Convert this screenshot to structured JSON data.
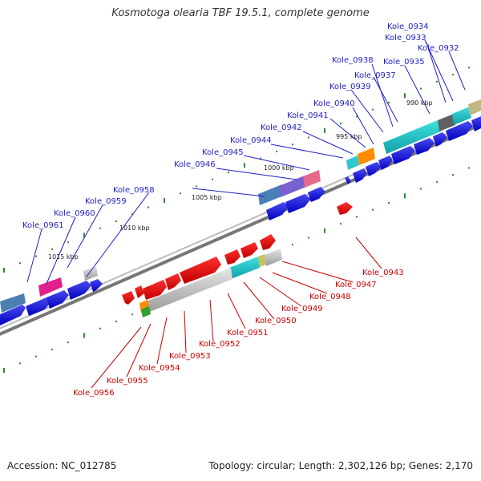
{
  "title": "Kosmotoga olearia TBF 19.5.1, complete genome",
  "footer": {
    "accession": "Accession: NC_012785",
    "summary": "Topology: circular; Length: 2,302,126 bp; Genes: 2,170"
  },
  "scale_labels": [
    "990 kbp",
    "995 kbp",
    "1000 kbp",
    "1005 kbp",
    "1010 kbp",
    "1015 kbp"
  ],
  "forward_labels": [
    "Kole_0934",
    "Kole_0933",
    "Kole_0932",
    "Kole_0938",
    "Kole_0935",
    "Kole_0937",
    "Kole_0939",
    "Kole_0940",
    "Kole_0941",
    "Kole_0942",
    "Kole_0944",
    "Kole_0945",
    "Kole_0946",
    "Kole_0958",
    "Kole_0959",
    "Kole_0960",
    "Kole_0961"
  ],
  "reverse_labels": [
    "Kole_0943",
    "Kole_0947",
    "Kole_0948",
    "Kole_0949",
    "Kole_0950",
    "Kole_0951",
    "Kole_0952",
    "Kole_0953",
    "Kole_0954",
    "Kole_0955",
    "Kole_0956"
  ],
  "colors": {
    "forward": "#1f1fc8",
    "reverse": "#cc0000",
    "backbone": "#888888",
    "tick": "#2e8b2e"
  }
}
